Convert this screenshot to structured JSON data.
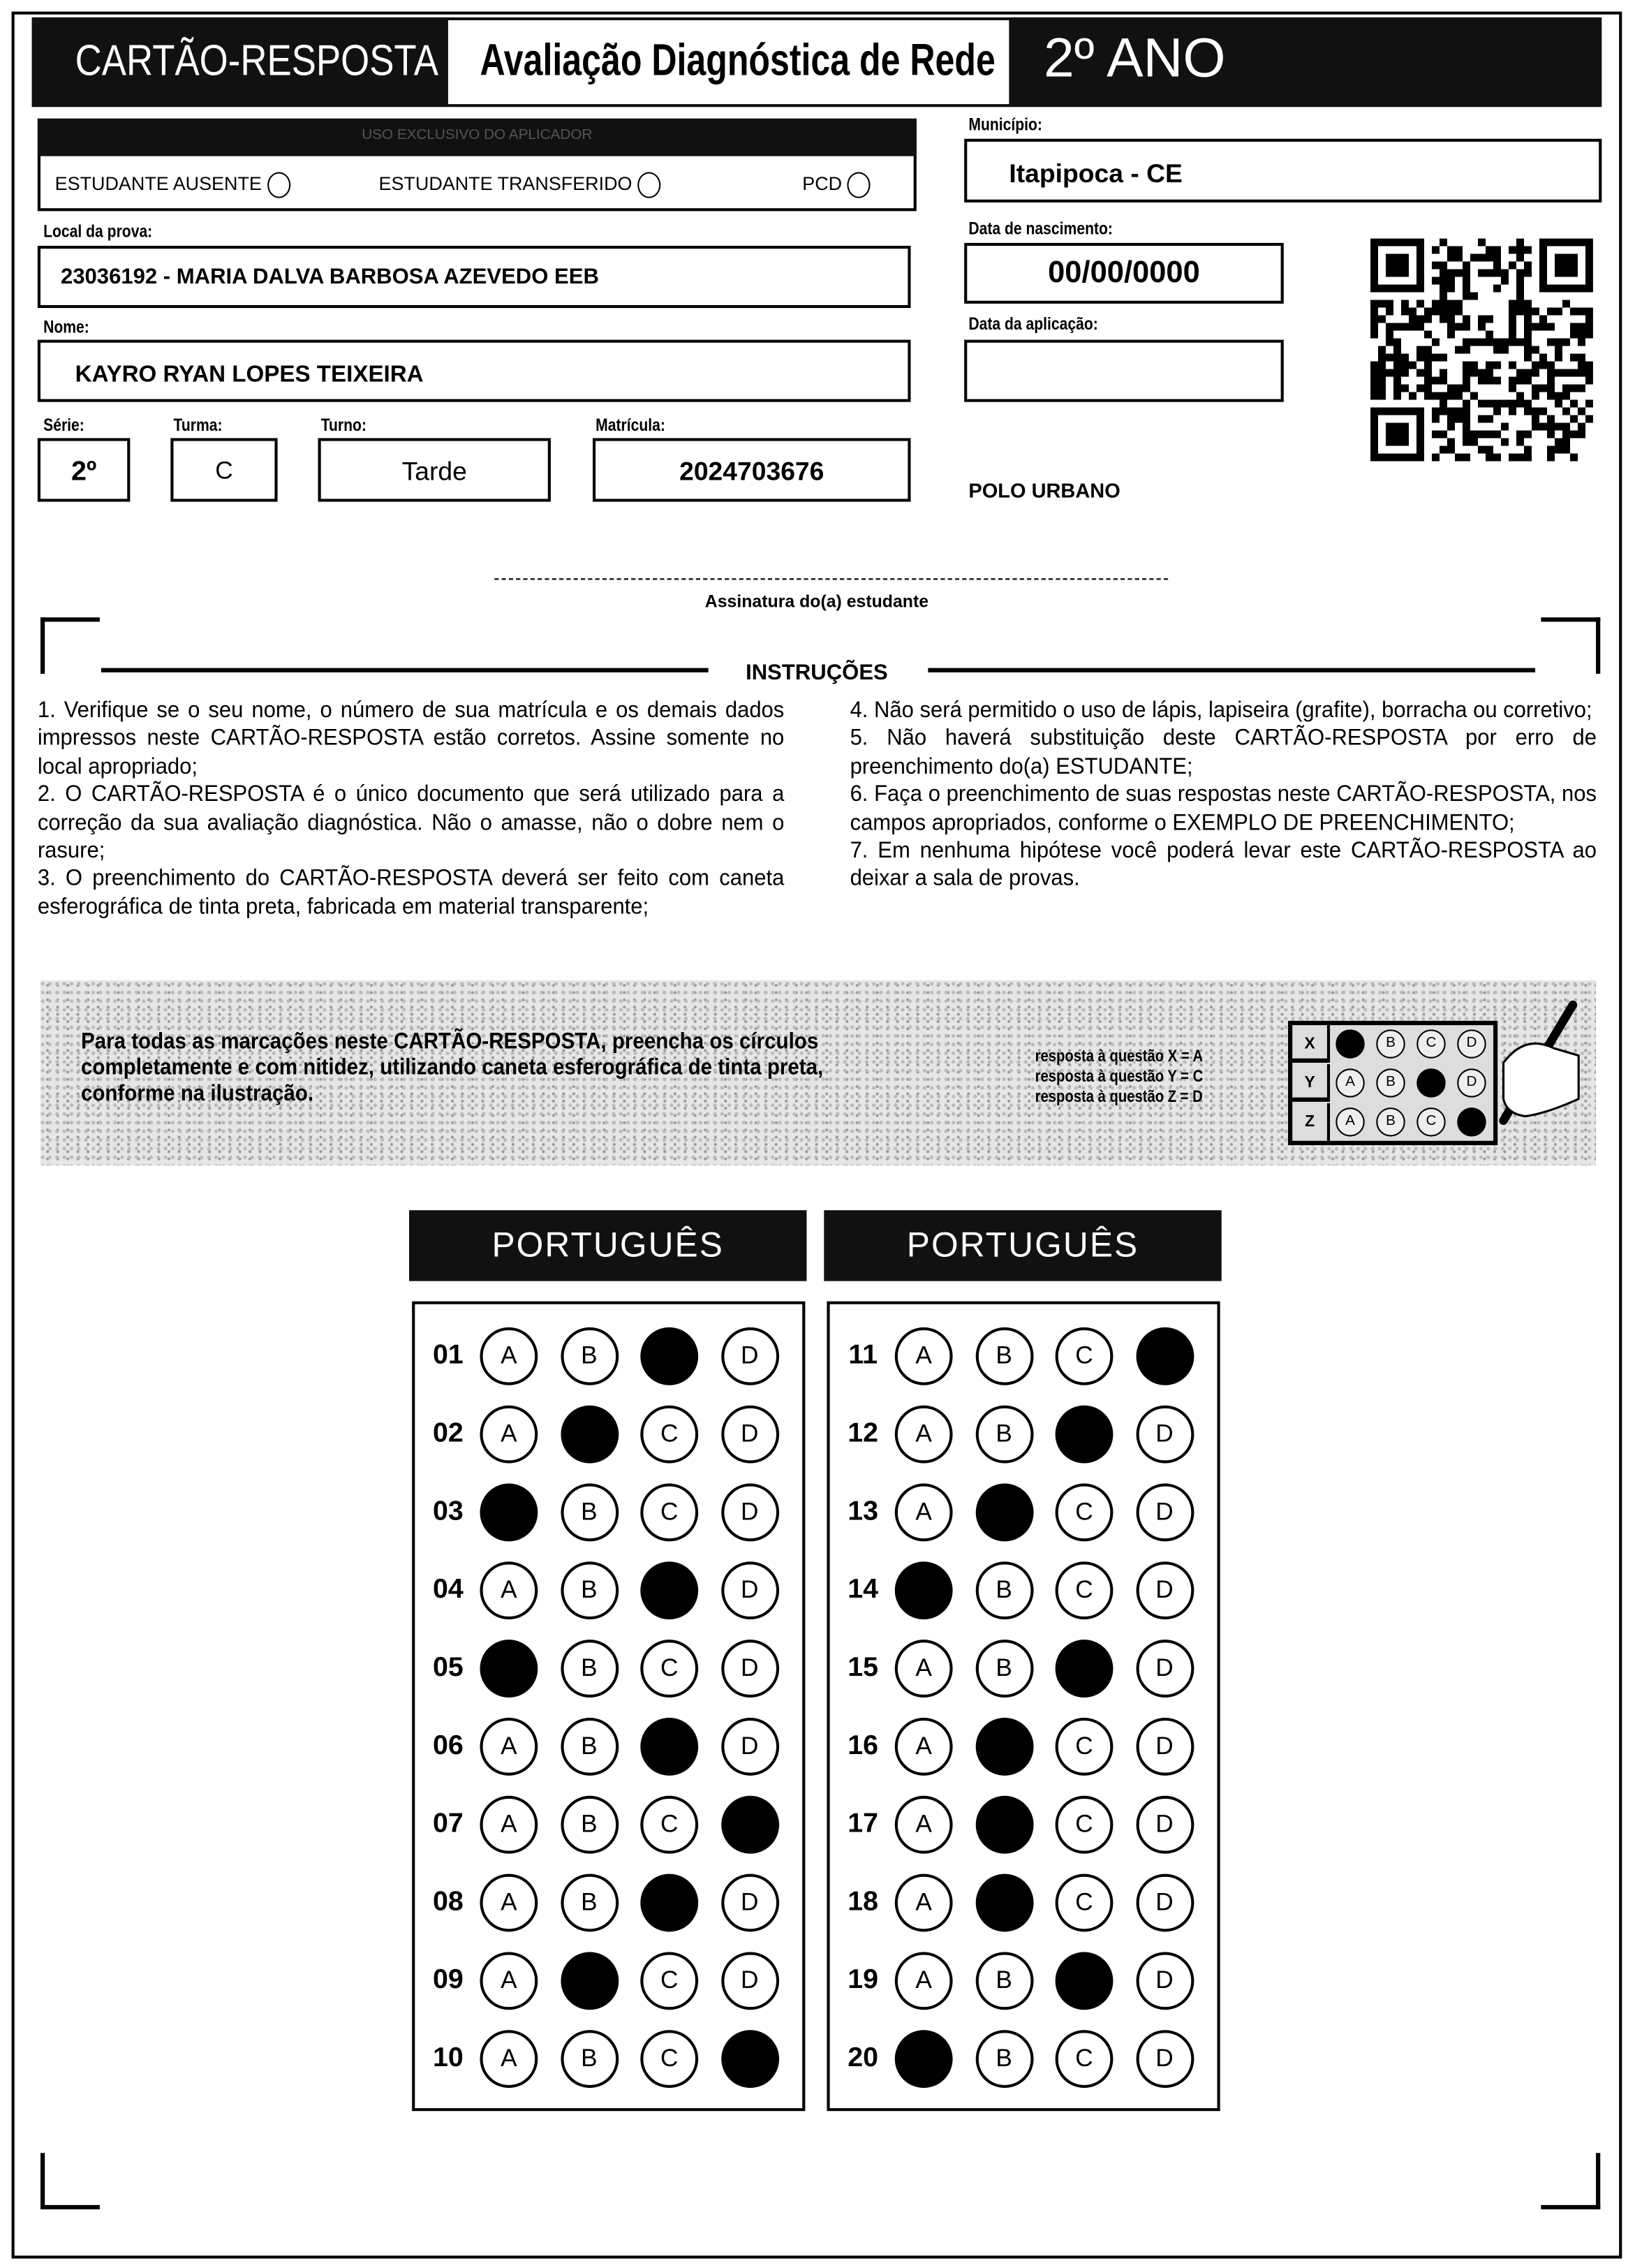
{
  "header": {
    "card_title": "CARTÃO-RESPOSTA",
    "exam_title": "Avaliação Diagnóstica de Rede",
    "grade": "2º ANO"
  },
  "applicator": {
    "title": "USO EXCLUSIVO DO APLICADOR",
    "options": [
      "ESTUDANTE AUSENTE",
      "ESTUDANTE TRANSFERIDO",
      "PCD"
    ]
  },
  "fields": {
    "municipio_label": "Município:",
    "municipio": "Itapipoca - CE",
    "local_label": "Local da prova:",
    "local": "23036192 - MARIA DALVA BARBOSA AZEVEDO EEB",
    "nascimento_label": "Data de nascimento:",
    "nascimento": "00/00/0000",
    "nome_label": "Nome:",
    "nome": "KAYRO RYAN LOPES TEIXEIRA",
    "aplicacao_label": "Data da aplicação:",
    "aplicacao": "",
    "serie_label": "Série:",
    "serie": "2º",
    "turma_label": "Turma:",
    "turma": "C",
    "turno_label": "Turno:",
    "turno": "Tarde",
    "matricula_label": "Matrícula:",
    "matricula": "2024703676",
    "polo": "POLO URBANO"
  },
  "signature_label": "Assinatura do(a) estudante",
  "instructions": {
    "title": "INSTRUÇÕES",
    "left": [
      "1. Verifique se o seu nome, o número de sua matrícula e os demais dados impressos neste CARTÃO-RESPOSTA estão corretos. Assine somente no local apropriado;",
      "2. O CARTÃO-RESPOSTA é o único documento que será utilizado para a correção da sua avaliação diagnóstica. Não o amasse, não o dobre nem o rasure;",
      "3. O preenchimento do CARTÃO-RESPOSTA deverá ser feito com caneta esferográfica de tinta preta, fabricada em material transparente;"
    ],
    "right": [
      "4. Não será permitido o uso de lápis, lapiseira (grafite), borracha ou corretivo;",
      "5. Não haverá substituição deste CARTÃO-RESPOSTA por erro de preenchimento do(a) ESTUDANTE;",
      "6. Faça o preenchimento de suas respostas neste CARTÃO-RESPOSTA, nos campos apropriados, conforme o EXEMPLO DE PREENCHIMENTO;",
      "7. Em nenhuma hipótese você poderá levar este CARTÃO-RESPOSTA ao deixar a sala de provas."
    ]
  },
  "example": {
    "text": "Para todas as marcações neste CARTÃO-RESPOSTA, preencha os círculos completamente e com nitidez, utilizando caneta esferográfica de tinta preta, conforme na ilustração.",
    "legend": [
      "resposta à questão X = A",
      "resposta à questão Y = C",
      "resposta à questão Z = D"
    ],
    "rows": [
      {
        "q": "X",
        "answer": "A"
      },
      {
        "q": "Y",
        "answer": "C"
      },
      {
        "q": "Z",
        "answer": "D"
      }
    ]
  },
  "options": [
    "A",
    "B",
    "C",
    "D"
  ],
  "answer_blocks": [
    {
      "subject": "PORTUGUÊS",
      "questions": [
        {
          "n": "01",
          "marked": "C"
        },
        {
          "n": "02",
          "marked": "B"
        },
        {
          "n": "03",
          "marked": "A"
        },
        {
          "n": "04",
          "marked": "C"
        },
        {
          "n": "05",
          "marked": "A"
        },
        {
          "n": "06",
          "marked": "C"
        },
        {
          "n": "07",
          "marked": "D"
        },
        {
          "n": "08",
          "marked": "C"
        },
        {
          "n": "09",
          "marked": "B"
        },
        {
          "n": "10",
          "marked": "D"
        }
      ]
    },
    {
      "subject": "PORTUGUÊS",
      "questions": [
        {
          "n": "11",
          "marked": "D"
        },
        {
          "n": "12",
          "marked": "C"
        },
        {
          "n": "13",
          "marked": "B"
        },
        {
          "n": "14",
          "marked": "A"
        },
        {
          "n": "15",
          "marked": "C"
        },
        {
          "n": "16",
          "marked": "B"
        },
        {
          "n": "17",
          "marked": "B"
        },
        {
          "n": "18",
          "marked": "B"
        },
        {
          "n": "19",
          "marked": "C"
        },
        {
          "n": "20",
          "marked": "A"
        }
      ]
    }
  ]
}
